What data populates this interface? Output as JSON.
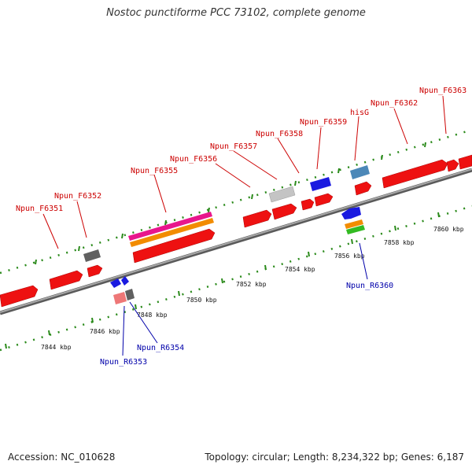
{
  "title": "Nostoc punctiforme PCC 73102, complete genome",
  "footer": {
    "accession": "Accession: NC_010628",
    "summary": "Topology: circular; Length: 8,234,322 bp; Genes: 6,187"
  },
  "colors": {
    "gene": "#ee1111",
    "backbone": "#7a7a7a",
    "tick": "#2a8a1a",
    "forward_label": "#cc0000",
    "reverse_label": "#0000aa"
  },
  "scale_labels": [
    "7844 kbp",
    "7846 kbp",
    "7848 kbp",
    "7850 kbp",
    "7852 kbp",
    "7854 kbp",
    "7856 kbp",
    "7858 kbp",
    "7860 kbp"
  ],
  "forward_labels": [
    "Npun_F6351",
    "Npun_F6352",
    "Npun_F6355",
    "Npun_F6356",
    "Npun_F6357",
    "Npun_F6358",
    "Npun_F6359",
    "hisG",
    "Npun_F6362",
    "Npun_F6363"
  ],
  "reverse_labels": [
    "Npun_R6353",
    "Npun_R6354",
    "Npun_R6360"
  ]
}
